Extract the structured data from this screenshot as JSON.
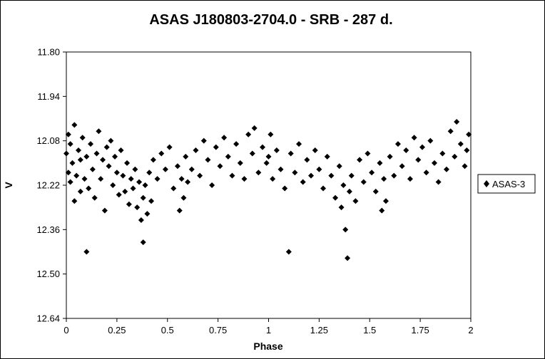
{
  "chart_data": {
    "type": "scatter",
    "title": "ASAS J180803-2704.0  - SRB - 287 d.",
    "xlabel": "Phase",
    "ylabel": "V",
    "xlim": [
      0,
      2
    ],
    "ylim": [
      11.8,
      12.64
    ],
    "y_inverted": true,
    "x_ticks": [
      "0",
      "0.25",
      "0.5",
      "0.75",
      "1",
      "1.25",
      "1.5",
      "1.75",
      "2"
    ],
    "y_ticks": [
      "11.80",
      "11.94",
      "12.08",
      "12.22",
      "12.36",
      "12.50",
      "12.64"
    ],
    "grid": false,
    "legend_position": "right",
    "series": [
      {
        "name": "ASAS-3",
        "marker": "diamond",
        "color": "#000000",
        "points": [
          [
            0.0,
            12.12
          ],
          [
            0.01,
            12.06
          ],
          [
            0.01,
            12.18
          ],
          [
            0.02,
            12.21
          ],
          [
            0.02,
            12.09
          ],
          [
            0.03,
            12.15
          ],
          [
            0.04,
            12.27
          ],
          [
            0.04,
            12.03
          ],
          [
            0.05,
            12.19
          ],
          [
            0.06,
            12.11
          ],
          [
            0.07,
            12.24
          ],
          [
            0.07,
            12.14
          ],
          [
            0.08,
            12.07
          ],
          [
            0.09,
            12.2
          ],
          [
            0.1,
            12.43
          ],
          [
            0.1,
            12.13
          ],
          [
            0.11,
            12.23
          ],
          [
            0.12,
            12.09
          ],
          [
            0.13,
            12.17
          ],
          [
            0.14,
            12.26
          ],
          [
            0.15,
            12.12
          ],
          [
            0.16,
            12.05
          ],
          [
            0.17,
            12.2
          ],
          [
            0.18,
            12.14
          ],
          [
            0.19,
            12.3
          ],
          [
            0.2,
            12.1
          ],
          [
            0.21,
            12.16
          ],
          [
            0.22,
            12.08
          ],
          [
            0.23,
            12.22
          ],
          [
            0.24,
            12.13
          ],
          [
            0.25,
            12.18
          ],
          [
            0.26,
            12.25
          ],
          [
            0.27,
            12.11
          ],
          [
            0.28,
            12.19
          ],
          [
            0.29,
            12.24
          ],
          [
            0.3,
            12.15
          ],
          [
            0.31,
            12.28
          ],
          [
            0.32,
            12.2
          ],
          [
            0.33,
            12.23
          ],
          [
            0.34,
            12.17
          ],
          [
            0.35,
            12.29
          ],
          [
            0.36,
            12.21
          ],
          [
            0.37,
            12.33
          ],
          [
            0.38,
            12.26
          ],
          [
            0.38,
            12.4
          ],
          [
            0.39,
            12.22
          ],
          [
            0.4,
            12.31
          ],
          [
            0.41,
            12.18
          ],
          [
            0.42,
            12.27
          ],
          [
            0.43,
            12.14
          ],
          [
            0.45,
            12.2
          ],
          [
            0.47,
            12.12
          ],
          [
            0.49,
            12.17
          ],
          [
            0.51,
            12.1
          ],
          [
            0.53,
            12.23
          ],
          [
            0.55,
            12.16
          ],
          [
            0.56,
            12.3
          ],
          [
            0.57,
            12.2
          ],
          [
            0.58,
            12.26
          ],
          [
            0.59,
            12.13
          ],
          [
            0.6,
            12.21
          ],
          [
            0.62,
            12.17
          ],
          [
            0.64,
            12.11
          ],
          [
            0.66,
            12.19
          ],
          [
            0.68,
            12.08
          ],
          [
            0.7,
            12.14
          ],
          [
            0.72,
            12.22
          ],
          [
            0.74,
            12.1
          ],
          [
            0.76,
            12.16
          ],
          [
            0.78,
            12.07
          ],
          [
            0.8,
            12.13
          ],
          [
            0.82,
            12.19
          ],
          [
            0.84,
            12.09
          ],
          [
            0.86,
            12.15
          ],
          [
            0.88,
            12.2
          ],
          [
            0.9,
            12.06
          ],
          [
            0.92,
            12.12
          ],
          [
            0.93,
            12.04
          ],
          [
            0.95,
            12.18
          ],
          [
            0.97,
            12.1
          ],
          [
            0.99,
            12.15
          ],
          [
            1.0,
            12.13
          ],
          [
            1.01,
            12.06
          ],
          [
            1.02,
            12.2
          ],
          [
            1.04,
            12.11
          ],
          [
            1.06,
            12.17
          ],
          [
            1.08,
            12.23
          ],
          [
            1.1,
            12.43
          ],
          [
            1.11,
            12.12
          ],
          [
            1.13,
            12.18
          ],
          [
            1.15,
            12.09
          ],
          [
            1.17,
            12.21
          ],
          [
            1.19,
            12.14
          ],
          [
            1.21,
            12.19
          ],
          [
            1.23,
            12.11
          ],
          [
            1.25,
            12.17
          ],
          [
            1.27,
            12.23
          ],
          [
            1.29,
            12.13
          ],
          [
            1.31,
            12.19
          ],
          [
            1.33,
            12.26
          ],
          [
            1.35,
            12.16
          ],
          [
            1.36,
            12.29
          ],
          [
            1.37,
            12.22
          ],
          [
            1.38,
            12.36
          ],
          [
            1.39,
            12.45
          ],
          [
            1.4,
            12.24
          ],
          [
            1.41,
            12.19
          ],
          [
            1.43,
            12.27
          ],
          [
            1.45,
            12.14
          ],
          [
            1.47,
            12.21
          ],
          [
            1.49,
            12.12
          ],
          [
            1.51,
            12.18
          ],
          [
            1.53,
            12.24
          ],
          [
            1.55,
            12.15
          ],
          [
            1.56,
            12.3
          ],
          [
            1.57,
            12.2
          ],
          [
            1.58,
            12.27
          ],
          [
            1.6,
            12.13
          ],
          [
            1.62,
            12.19
          ],
          [
            1.64,
            12.09
          ],
          [
            1.66,
            12.16
          ],
          [
            1.68,
            12.11
          ],
          [
            1.7,
            12.2
          ],
          [
            1.72,
            12.07
          ],
          [
            1.74,
            12.14
          ],
          [
            1.76,
            12.1
          ],
          [
            1.78,
            12.18
          ],
          [
            1.8,
            12.08
          ],
          [
            1.82,
            12.15
          ],
          [
            1.84,
            12.21
          ],
          [
            1.86,
            12.12
          ],
          [
            1.88,
            12.17
          ],
          [
            1.9,
            12.05
          ],
          [
            1.92,
            12.13
          ],
          [
            1.93,
            12.02
          ],
          [
            1.95,
            12.09
          ],
          [
            1.97,
            12.16
          ],
          [
            1.98,
            12.11
          ],
          [
            1.99,
            12.06
          ]
        ]
      }
    ]
  }
}
